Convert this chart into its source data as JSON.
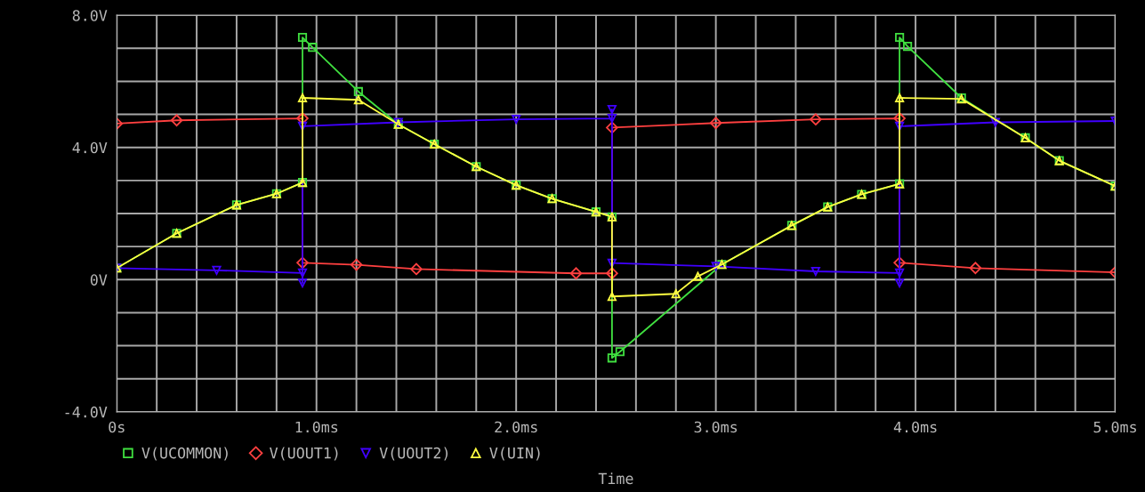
{
  "chart_data": {
    "type": "line",
    "xlabel": "Time",
    "xlim": [
      0,
      5
    ],
    "ylim": [
      -4,
      8
    ],
    "xticks": [
      {
        "value": 0,
        "label": "0s"
      },
      {
        "value": 0.2,
        "label": null
      },
      {
        "value": 0.4,
        "label": null
      },
      {
        "value": 0.6,
        "label": null
      },
      {
        "value": 0.8,
        "label": null
      },
      {
        "value": 1,
        "label": "1.0ms"
      },
      {
        "value": 1.2,
        "label": null
      },
      {
        "value": 1.4,
        "label": null
      },
      {
        "value": 1.6,
        "label": null
      },
      {
        "value": 1.8,
        "label": null
      },
      {
        "value": 2,
        "label": "2.0ms"
      },
      {
        "value": 2.2,
        "label": null
      },
      {
        "value": 2.4,
        "label": null
      },
      {
        "value": 2.6,
        "label": null
      },
      {
        "value": 2.8,
        "label": null
      },
      {
        "value": 3,
        "label": "3.0ms"
      },
      {
        "value": 3.2,
        "label": null
      },
      {
        "value": 3.4,
        "label": null
      },
      {
        "value": 3.6,
        "label": null
      },
      {
        "value": 3.8,
        "label": null
      },
      {
        "value": 4,
        "label": "4.0ms"
      },
      {
        "value": 4.2,
        "label": null
      },
      {
        "value": 4.4,
        "label": null
      },
      {
        "value": 4.6,
        "label": null
      },
      {
        "value": 4.8,
        "label": null
      },
      {
        "value": 5,
        "label": "5.0ms"
      }
    ],
    "yticks": [
      {
        "value": -4,
        "label": "-4.0V"
      },
      {
        "value": -3,
        "label": null
      },
      {
        "value": -2,
        "label": null
      },
      {
        "value": -1,
        "label": null
      },
      {
        "value": 0,
        "label": "0V"
      },
      {
        "value": 1,
        "label": null
      },
      {
        "value": 2,
        "label": null
      },
      {
        "value": 3,
        "label": null
      },
      {
        "value": 4,
        "label": "4.0V"
      },
      {
        "value": 5,
        "label": null
      },
      {
        "value": 6,
        "label": null
      },
      {
        "value": 7,
        "label": null
      },
      {
        "value": 8,
        "label": "8.0V"
      }
    ],
    "grid": true,
    "legend": "bottom",
    "series": [
      {
        "name": "V(UCOMMON)",
        "color": "#40e040",
        "marker": "square",
        "x": [
          0,
          0.3,
          0.6,
          0.8,
          0.93,
          0.93,
          0.98,
          1.21,
          1.41,
          1.59,
          1.8,
          2.0,
          2.18,
          2.4,
          2.48,
          2.48,
          2.52,
          3.03,
          3.38,
          3.56,
          3.73,
          3.92,
          3.92,
          3.96,
          4.23,
          4.55,
          4.72,
          5.0
        ],
        "values": [
          0.35,
          1.4,
          2.26,
          2.6,
          2.94,
          7.33,
          7.03,
          5.69,
          4.7,
          4.1,
          3.42,
          2.86,
          2.45,
          2.05,
          1.9,
          -2.37,
          -2.18,
          0.46,
          1.64,
          2.2,
          2.58,
          2.9,
          7.33,
          7.06,
          5.5,
          4.29,
          3.6,
          2.83
        ]
      },
      {
        "name": "V(UOUT1)",
        "color": "#ff4040",
        "marker": "diamond",
        "x": [
          0,
          0.3,
          0.93,
          0.93,
          1.2,
          1.5,
          2.3,
          2.48,
          2.48,
          3.0,
          3.5,
          3.92,
          3.92,
          4.3,
          5.0
        ],
        "values": [
          4.72,
          4.82,
          4.88,
          0.51,
          0.45,
          0.32,
          0.19,
          0.19,
          4.6,
          4.74,
          4.85,
          4.88,
          0.51,
          0.35,
          0.22
        ]
      },
      {
        "name": "V(UOUT2)",
        "color": "#4000ff",
        "marker": "triangle_down",
        "x": [
          0,
          0.5,
          0.93,
          0.93,
          0.93,
          1.41,
          2.0,
          2.48,
          2.48,
          2.48,
          3.0,
          3.5,
          3.92,
          3.92,
          3.92,
          4.4,
          5.0
        ],
        "values": [
          0.35,
          0.28,
          0.2,
          -0.1,
          4.64,
          4.76,
          4.85,
          4.88,
          5.15,
          0.5,
          0.4,
          0.25,
          0.2,
          -0.1,
          4.64,
          4.76,
          4.8
        ]
      },
      {
        "name": "V(UIN)",
        "color": "#ffff40",
        "marker": "triangle",
        "x": [
          0,
          0.3,
          0.6,
          0.8,
          0.93,
          0.93,
          1.21,
          1.41,
          1.59,
          1.8,
          2.0,
          2.18,
          2.4,
          2.48,
          2.48,
          2.8,
          2.91,
          3.03,
          3.38,
          3.56,
          3.73,
          3.92,
          3.92,
          4.23,
          4.55,
          4.72,
          5.0
        ],
        "values": [
          0.35,
          1.4,
          2.26,
          2.6,
          2.94,
          5.5,
          5.44,
          4.7,
          4.1,
          3.42,
          2.86,
          2.45,
          2.05,
          1.9,
          -0.51,
          -0.43,
          0.1,
          0.46,
          1.64,
          2.2,
          2.58,
          2.9,
          5.5,
          5.47,
          4.29,
          3.6,
          2.83
        ]
      }
    ]
  }
}
